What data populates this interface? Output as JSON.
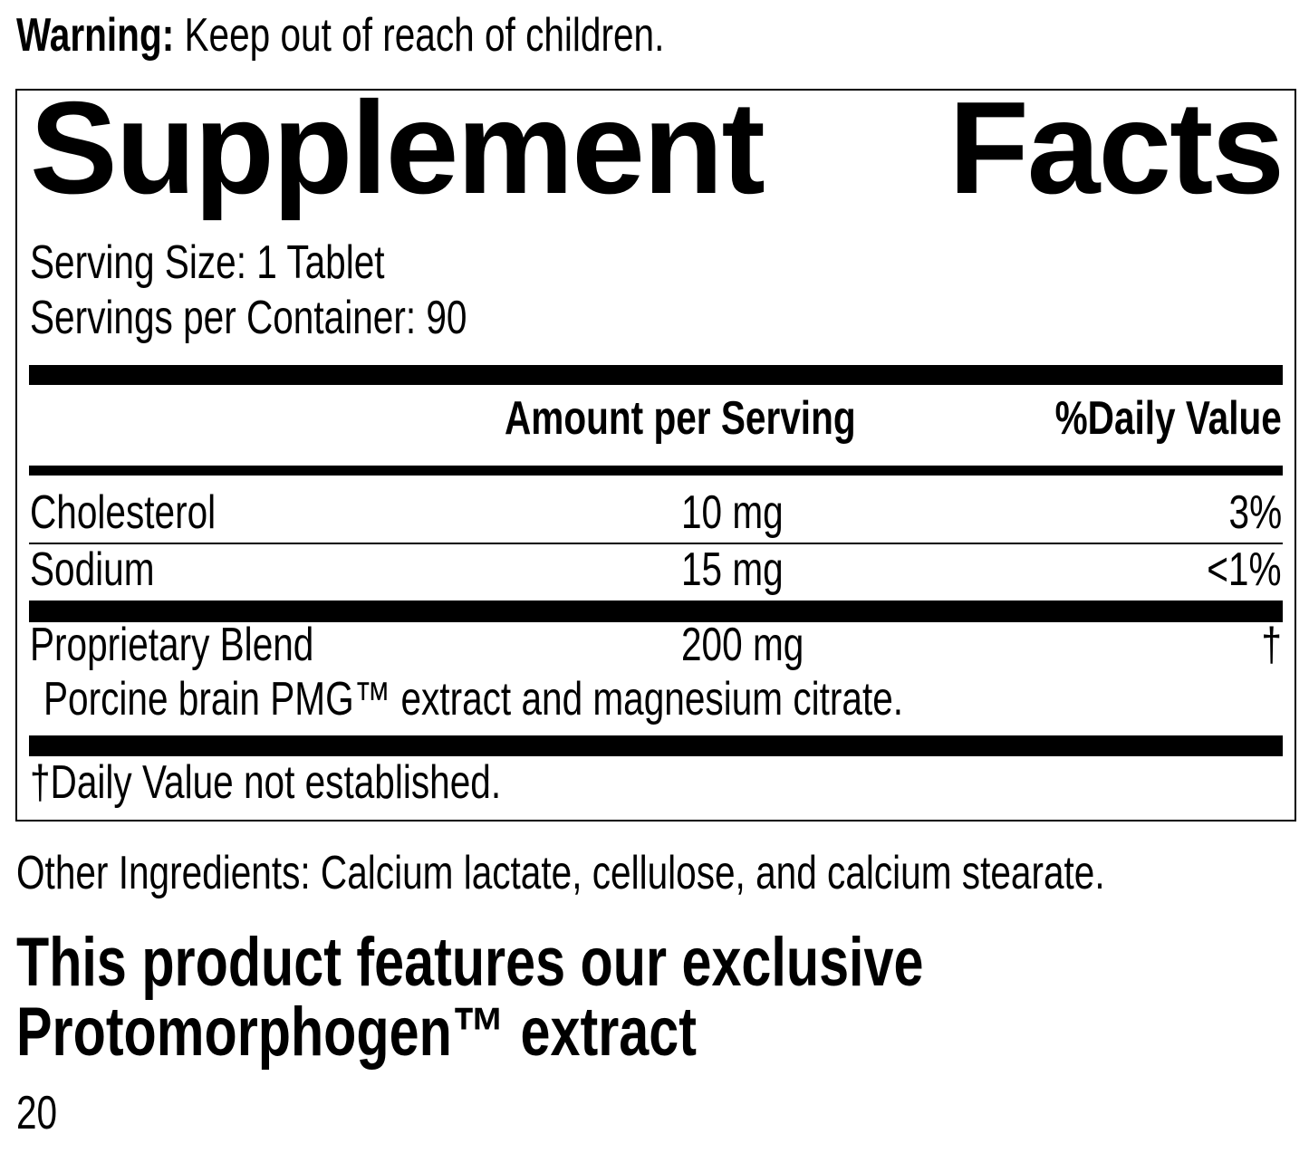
{
  "warning": {
    "label": "Warning:",
    "text": " Keep out of reach of children."
  },
  "facts": {
    "title_word1": "Supplement",
    "title_word2": "Facts",
    "serving_size": "Serving Size: 1 Tablet",
    "servings_per_container": "Servings per Container: 90",
    "header": {
      "amount": "Amount per Serving",
      "daily_value": "%Daily Value"
    },
    "rows": [
      {
        "name": "Cholesterol",
        "amount": "10 mg",
        "dv": "3%"
      },
      {
        "name": "Sodium",
        "amount": "15 mg",
        "dv": "<1%"
      },
      {
        "name": "Proprietary Blend",
        "amount": "200 mg",
        "dv": "†",
        "sub": "Porcine brain PMG™ extract and magnesium citrate."
      }
    ],
    "footnote": "†Daily Value not established."
  },
  "other_ingredients": "Other Ingredients: Calcium lactate, cellulose, and calcium stearate.",
  "feature_heading": {
    "line1": "This product features our exclusive",
    "line2": "Protomorphogen™ extract"
  },
  "page_number": "20"
}
